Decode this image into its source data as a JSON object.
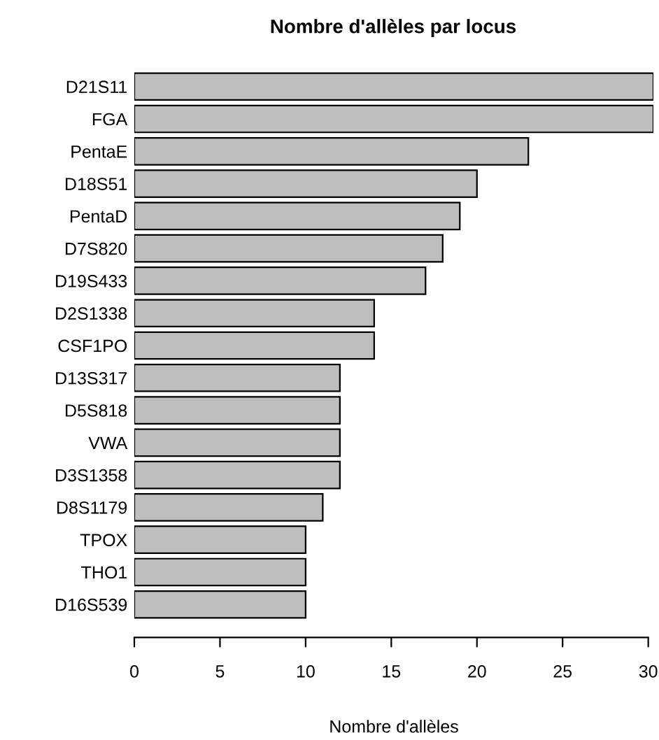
{
  "chart_data": {
    "type": "bar",
    "orientation": "horizontal",
    "title": "Nombre d'allèles par locus",
    "xlabel": "Nombre d'allèles",
    "categories": [
      "D21S11",
      "FGA",
      "PentaE",
      "D18S51",
      "PentaD",
      "D7S820",
      "D19S433",
      "D2S1338",
      "CSF1PO",
      "D13S317",
      "D5S818",
      "VWA",
      "D3S1358",
      "D8S1179",
      "TPOX",
      "THO1",
      "D16S539"
    ],
    "values": [
      30.3,
      30.3,
      23,
      20,
      19,
      18,
      17,
      14,
      14,
      12,
      12,
      12,
      12,
      11,
      10,
      10,
      10
    ],
    "color": "#bebebe",
    "xlim": [
      0,
      30.3
    ],
    "xticks": [
      0,
      5,
      10,
      15,
      20,
      25,
      30
    ],
    "grid": false,
    "legend": false
  }
}
